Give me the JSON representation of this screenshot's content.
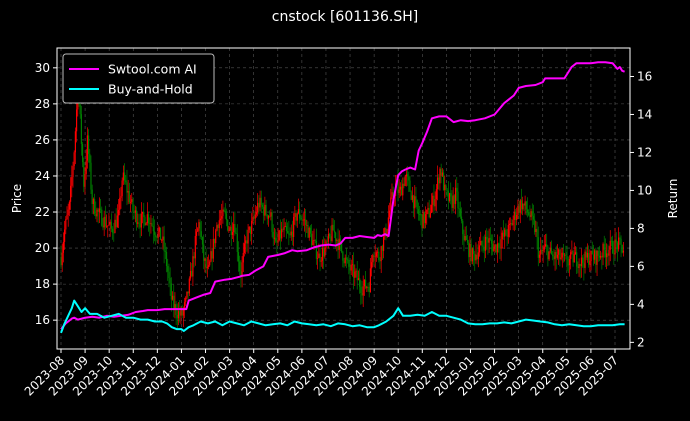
{
  "chart_data": {
    "type": "line",
    "title": "cnstock [601136.SH]",
    "ylabel_left": "Price",
    "ylabel_right": "Return",
    "ylim_left": [
      14.4,
      31.1
    ],
    "ylim_right": [
      1.65,
      17.5
    ],
    "yticks_left": [
      16,
      18,
      20,
      22,
      24,
      26,
      28,
      30
    ],
    "yticks_right": [
      2,
      4,
      6,
      8,
      10,
      12,
      14,
      16
    ],
    "x_categories": [
      "2023-08",
      "2023-09",
      "2023-10",
      "2023-11",
      "2023-12",
      "2024-01",
      "2024-02",
      "2024-03",
      "2024-04",
      "2024-05",
      "2024-06",
      "2024-07",
      "2024-08",
      "2024-09",
      "2024-10",
      "2024-11",
      "2024-12",
      "2025-01",
      "2025-02",
      "2025-03",
      "2025-04",
      "2025-05",
      "2025-06",
      "2025-07"
    ],
    "grid": true,
    "legend_position": "top-left",
    "colors": {
      "background": "#000000",
      "ai": "#ff00ff",
      "buy_hold": "#00ffff",
      "candle_up": "#ff0000",
      "candle_down": "#008000",
      "grid": "#555555"
    },
    "price_path": [
      [
        0,
        19.5
      ],
      [
        0.15,
        21
      ],
      [
        0.35,
        22.3
      ],
      [
        0.55,
        25.5
      ],
      [
        0.7,
        28.8
      ],
      [
        0.8,
        27
      ],
      [
        0.95,
        23.5
      ],
      [
        1.1,
        26
      ],
      [
        1.3,
        22.5
      ],
      [
        1.5,
        22
      ],
      [
        1.8,
        21.5
      ],
      [
        2.1,
        21
      ],
      [
        2.4,
        21.8
      ],
      [
        2.55,
        24
      ],
      [
        2.8,
        23
      ],
      [
        3.0,
        22
      ],
      [
        3.3,
        21.5
      ],
      [
        3.6,
        21.8
      ],
      [
        3.9,
        21
      ],
      [
        4.2,
        20.5
      ],
      [
        4.4,
        19
      ],
      [
        4.6,
        17
      ],
      [
        4.8,
        16.5
      ],
      [
        5.0,
        16.2
      ],
      [
        5.2,
        17
      ],
      [
        5.4,
        18.5
      ],
      [
        5.6,
        20.5
      ],
      [
        5.75,
        21.5
      ],
      [
        5.9,
        19.5
      ],
      [
        6.1,
        18.5
      ],
      [
        6.3,
        20
      ],
      [
        6.5,
        21.5
      ],
      [
        6.8,
        21.8
      ],
      [
        7.0,
        21
      ],
      [
        7.2,
        21.5
      ],
      [
        7.45,
        18.5
      ],
      [
        7.7,
        20.5
      ],
      [
        8.0,
        21.5
      ],
      [
        8.2,
        22.5
      ],
      [
        8.5,
        22
      ],
      [
        8.7,
        21.8
      ],
      [
        8.9,
        20
      ],
      [
        9.2,
        21
      ],
      [
        9.5,
        20.5
      ],
      [
        9.8,
        22
      ],
      [
        10.1,
        21.5
      ],
      [
        10.4,
        20.5
      ],
      [
        10.7,
        19.5
      ],
      [
        11.0,
        20
      ],
      [
        11.3,
        21
      ],
      [
        11.6,
        20
      ],
      [
        11.9,
        19
      ],
      [
        12.2,
        18.5
      ],
      [
        12.5,
        17.8
      ],
      [
        12.8,
        18
      ],
      [
        12.95,
        20
      ],
      [
        13.2,
        19.5
      ],
      [
        13.5,
        21
      ],
      [
        13.7,
        22.5
      ],
      [
        13.9,
        23.5
      ],
      [
        14.05,
        23
      ],
      [
        14.3,
        24
      ],
      [
        14.55,
        23
      ],
      [
        14.8,
        22
      ],
      [
        15.0,
        21.5
      ],
      [
        15.3,
        22
      ],
      [
        15.55,
        23
      ],
      [
        15.75,
        24.5
      ],
      [
        15.95,
        23
      ],
      [
        16.2,
        22.5
      ],
      [
        16.4,
        23
      ],
      [
        16.65,
        21
      ],
      [
        16.9,
        20
      ],
      [
        17.1,
        19.5
      ],
      [
        17.4,
        20
      ],
      [
        17.7,
        20.5
      ],
      [
        18.0,
        20
      ],
      [
        18.3,
        20.5
      ],
      [
        18.6,
        21
      ],
      [
        18.9,
        22
      ],
      [
        19.1,
        22.5
      ],
      [
        19.4,
        22
      ],
      [
        19.7,
        21
      ],
      [
        19.85,
        19.5
      ],
      [
        20.1,
        20
      ],
      [
        20.4,
        19.5
      ],
      [
        20.7,
        19.5
      ],
      [
        21.0,
        19.2
      ],
      [
        21.3,
        19.5
      ],
      [
        21.6,
        19.2
      ],
      [
        21.9,
        19.5
      ],
      [
        22.2,
        19.5
      ],
      [
        22.5,
        19.8
      ],
      [
        22.8,
        20
      ],
      [
        23.1,
        20.2
      ],
      [
        23.4,
        19.9
      ]
    ],
    "series": [
      {
        "name": "Swtool.com AI",
        "axis": "right",
        "x": [
          0,
          0.2,
          0.3,
          0.45,
          0.55,
          0.7,
          1.0,
          1.3,
          1.6,
          1.9,
          2.2,
          2.5,
          2.8,
          3.1,
          3.4,
          3.6,
          4.0,
          4.3,
          4.6,
          4.9,
          5.2,
          5.3,
          5.6,
          5.9,
          6.2,
          6.4,
          6.8,
          7.1,
          7.4,
          7.5,
          7.8,
          8.1,
          8.4,
          8.6,
          9.0,
          9.3,
          9.6,
          9.8,
          10.2,
          10.5,
          10.8,
          11.1,
          11.4,
          11.6,
          11.8,
          12.1,
          12.4,
          12.7,
          13.0,
          13.15,
          13.3,
          13.45,
          13.6,
          13.8,
          14.0,
          14.15,
          14.3,
          14.5,
          14.7,
          14.85,
          15.0,
          15.2,
          15.4,
          15.7,
          16.0,
          16.3,
          16.6,
          16.9,
          17.2,
          17.6,
          18.0,
          18.4,
          18.6,
          18.8,
          19.0,
          19.3,
          19.7,
          20.0,
          20.1,
          20.5,
          20.9,
          21.2,
          21.4,
          21.7,
          22.0,
          22.3,
          22.6,
          22.9,
          23.1,
          23.2,
          23.3,
          23.4
        ],
        "values": [
          2.7,
          3.0,
          3.1,
          3.25,
          3.3,
          3.2,
          3.3,
          3.35,
          3.3,
          3.4,
          3.35,
          3.4,
          3.45,
          3.6,
          3.65,
          3.7,
          3.7,
          3.75,
          3.75,
          3.75,
          3.75,
          4.2,
          4.35,
          4.5,
          4.6,
          5.2,
          5.3,
          5.35,
          5.45,
          5.5,
          5.55,
          5.8,
          6.0,
          6.5,
          6.6,
          6.7,
          6.85,
          6.8,
          6.85,
          7.0,
          7.1,
          7.15,
          7.1,
          7.2,
          7.5,
          7.5,
          7.6,
          7.55,
          7.5,
          7.65,
          7.6,
          7.7,
          7.6,
          9.5,
          10.8,
          11.0,
          11.1,
          11.2,
          11.1,
          12.1,
          12.5,
          13.1,
          13.8,
          13.9,
          13.9,
          13.6,
          13.7,
          13.65,
          13.7,
          13.8,
          14.0,
          14.6,
          14.8,
          15.0,
          15.4,
          15.5,
          15.55,
          15.7,
          15.9,
          15.9,
          15.9,
          16.5,
          16.7,
          16.7,
          16.7,
          16.75,
          16.75,
          16.7,
          16.4,
          16.5,
          16.3,
          16.25
        ]
      },
      {
        "name": "Buy-and-Hold",
        "axis": "right",
        "x": [
          0,
          0.15,
          0.3,
          0.45,
          0.55,
          0.7,
          0.85,
          1.0,
          1.2,
          1.5,
          1.8,
          2.1,
          2.4,
          2.7,
          3.0,
          3.3,
          3.6,
          3.9,
          4.2,
          4.4,
          4.6,
          4.8,
          5.0,
          5.1,
          5.3,
          5.5,
          5.8,
          6.1,
          6.4,
          6.7,
          7.0,
          7.3,
          7.6,
          7.9,
          8.2,
          8.5,
          8.8,
          9.1,
          9.4,
          9.7,
          10.0,
          10.3,
          10.6,
          10.9,
          11.2,
          11.5,
          11.8,
          12.1,
          12.4,
          12.7,
          13.0,
          13.2,
          13.5,
          13.8,
          14.0,
          14.2,
          14.5,
          14.8,
          15.1,
          15.4,
          15.7,
          16.0,
          16.3,
          16.6,
          16.9,
          17.2,
          17.5,
          17.8,
          18.1,
          18.4,
          18.7,
          19.0,
          19.3,
          19.6,
          19.9,
          20.2,
          20.5,
          20.8,
          21.1,
          21.4,
          21.7,
          22.0,
          22.3,
          22.6,
          22.9,
          23.2,
          23.4
        ],
        "values": [
          2.5,
          3.0,
          3.4,
          3.8,
          4.2,
          3.9,
          3.6,
          3.8,
          3.5,
          3.5,
          3.3,
          3.4,
          3.5,
          3.3,
          3.3,
          3.2,
          3.2,
          3.1,
          3.1,
          3.0,
          2.8,
          2.7,
          2.7,
          2.6,
          2.8,
          2.9,
          3.1,
          3.0,
          3.1,
          2.9,
          3.1,
          3.0,
          2.9,
          3.1,
          3.0,
          2.9,
          2.95,
          3.0,
          2.9,
          3.1,
          3.0,
          2.95,
          2.9,
          2.95,
          2.85,
          3.0,
          2.95,
          2.85,
          2.9,
          2.8,
          2.8,
          2.9,
          3.1,
          3.4,
          3.8,
          3.4,
          3.4,
          3.45,
          3.4,
          3.6,
          3.4,
          3.4,
          3.3,
          3.2,
          3.0,
          2.95,
          2.95,
          3.0,
          3.0,
          3.05,
          3.0,
          3.1,
          3.2,
          3.15,
          3.1,
          3.05,
          2.95,
          2.9,
          2.95,
          2.9,
          2.85,
          2.85,
          2.9,
          2.9,
          2.9,
          2.95,
          2.95
        ]
      }
    ]
  }
}
